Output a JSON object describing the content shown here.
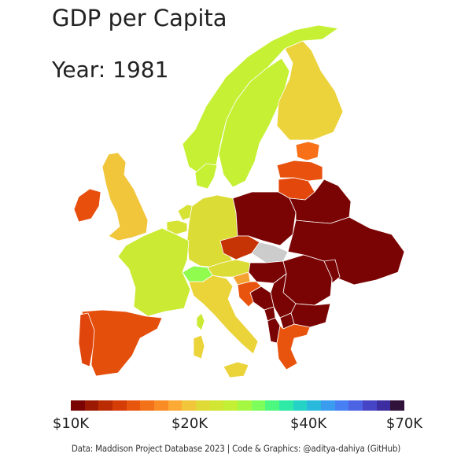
{
  "title": "GDP per Capita",
  "subtitle": "Year: 1981",
  "caption": "Data: Maddison Project Database 2023  |  Code & Graphics: @aditya-dahiya (GitHub)",
  "legend": {
    "ticks": [
      {
        "label": "$10K",
        "value": 10000
      },
      {
        "label": "$20K",
        "value": 20000
      },
      {
        "label": "$40K",
        "value": 40000
      },
      {
        "label": "$70K",
        "value": 70000
      }
    ],
    "colors": [
      "#7a0403",
      "#9c1a03",
      "#bb2b02",
      "#d63c05",
      "#e8550d",
      "#f37119",
      "#fa8c25",
      "#fdaa35",
      "#f2c63b",
      "#e0da37",
      "#d1e533",
      "#c3ef34",
      "#a5f842",
      "#7dfe5a",
      "#4cf880",
      "#2fe9a6",
      "#25d3c6",
      "#29b9dd",
      "#3a9cee",
      "#4780f4",
      "#4c63e4",
      "#4645c6",
      "#3c2ea1",
      "#30123b"
    ]
  },
  "countries": [
    {
      "name": "Norway",
      "color": "#c6f034"
    },
    {
      "name": "Sweden",
      "color": "#c6f034"
    },
    {
      "name": "Finland",
      "color": "#ecd33b"
    },
    {
      "name": "Denmark",
      "color": "#c6f034"
    },
    {
      "name": "Estonia",
      "color": "#f87017"
    },
    {
      "name": "Latvia",
      "color": "#e9520e"
    },
    {
      "name": "Lithuania",
      "color": "#e3470b"
    },
    {
      "name": "United Kingdom",
      "color": "#f2c63b"
    },
    {
      "name": "Ireland",
      "color": "#e84f0d"
    },
    {
      "name": "Netherlands",
      "color": "#d6e234"
    },
    {
      "name": "Belgium",
      "color": "#d6e234"
    },
    {
      "name": "Germany",
      "color": "#dcdc37"
    },
    {
      "name": "France",
      "color": "#cbea33"
    },
    {
      "name": "Switzerland",
      "color": "#8ffc4e"
    },
    {
      "name": "Austria",
      "color": "#dcdc37"
    },
    {
      "name": "Italy",
      "color": "#ebd33a"
    },
    {
      "name": "Spain",
      "color": "#e54f0c"
    },
    {
      "name": "Portugal",
      "color": "#e0460b"
    },
    {
      "name": "Poland",
      "color": "#7a0403"
    },
    {
      "name": "Belarus",
      "color": "#7a0403"
    },
    {
      "name": "Ukraine",
      "color": "#7a0403"
    },
    {
      "name": "Czechia",
      "color": "#c63405"
    },
    {
      "name": "Slovakia",
      "color": "#cccccc"
    },
    {
      "name": "Hungary",
      "color": "#7a0403"
    },
    {
      "name": "Romania",
      "color": "#7a0403"
    },
    {
      "name": "Moldova",
      "color": "#7a0403"
    },
    {
      "name": "Bulgaria",
      "color": "#7a0403"
    },
    {
      "name": "Serbia",
      "color": "#7a0403"
    },
    {
      "name": "Bosnia and Herzegovina",
      "color": "#7a0403"
    },
    {
      "name": "Montenegro",
      "color": "#7a0403"
    },
    {
      "name": "North Macedonia",
      "color": "#7a0403"
    },
    {
      "name": "Albania",
      "color": "#7a0403"
    },
    {
      "name": "Slovenia",
      "color": "#f6a233"
    },
    {
      "name": "Croatia",
      "color": "#e8540e"
    },
    {
      "name": "Greece",
      "color": "#e8540e"
    },
    {
      "name": "Corsica",
      "color": "#cbea33"
    }
  ]
}
